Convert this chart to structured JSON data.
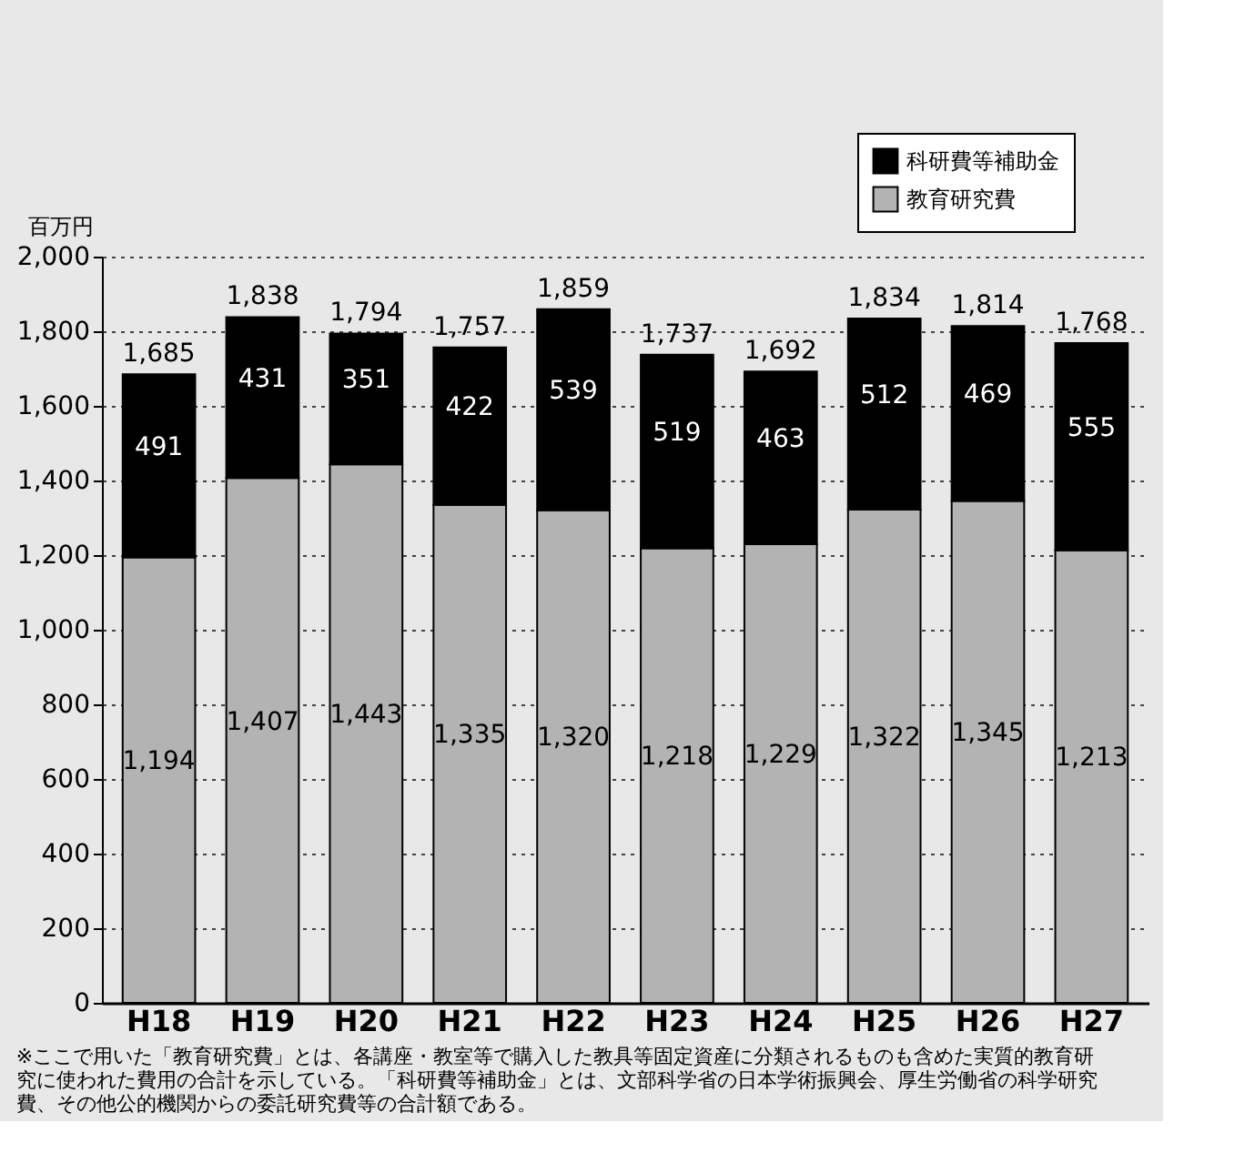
{
  "chart_data": {
    "type": "bar",
    "stacked": true,
    "categories": [
      "H18",
      "H19",
      "H20",
      "H21",
      "H22",
      "H23",
      "H24",
      "H25",
      "H26",
      "H27"
    ],
    "series": [
      {
        "name": "教育研究費",
        "color": "#b3b3b3",
        "values": [
          1194,
          1407,
          1443,
          1335,
          1320,
          1218,
          1229,
          1322,
          1345,
          1213
        ],
        "value_labels": [
          "1,194",
          "1,407",
          "1,443",
          "1,335",
          "1,320",
          "1,218",
          "1,229",
          "1,322",
          "1,345",
          "1,213"
        ]
      },
      {
        "name": "科研費等補助金",
        "color": "#000000",
        "values": [
          491,
          431,
          351,
          422,
          539,
          519,
          463,
          512,
          469,
          555
        ]
      }
    ],
    "data_labels": true,
    "totals": [
      "1,685",
      "1,838",
      "1,794",
      "1,757",
      "1,859",
      "1,737",
      "1,692",
      "1,834",
      "1,814",
      "1,768"
    ],
    "ylabel": "百万円",
    "ylim": [
      0,
      2000
    ],
    "yticks": [
      0,
      200,
      400,
      600,
      800,
      {
        "value": 1000,
        "label": "1,000"
      },
      {
        "value": 1200,
        "label": "1,200"
      },
      {
        "value": 1400,
        "label": "1,400"
      },
      {
        "value": 1600,
        "label": "1,600"
      },
      {
        "value": 1800,
        "label": "1,800"
      },
      {
        "value": 2000,
        "label": "2,000"
      }
    ],
    "grid": "y",
    "legend": "top right",
    "annotations": [
      "※ここで用いた「教育研究費」とは、各講座・教室等で購入した教具等固定資産に分類されるものも含めた実質的教育研究に使われた費用の合計を示している。「科研費等補助金」とは、文部科学省の日本学術振興会、厚生労働省の科学研究費、その他公的機関からの委託研究費等の合計額である。"
    ]
  }
}
